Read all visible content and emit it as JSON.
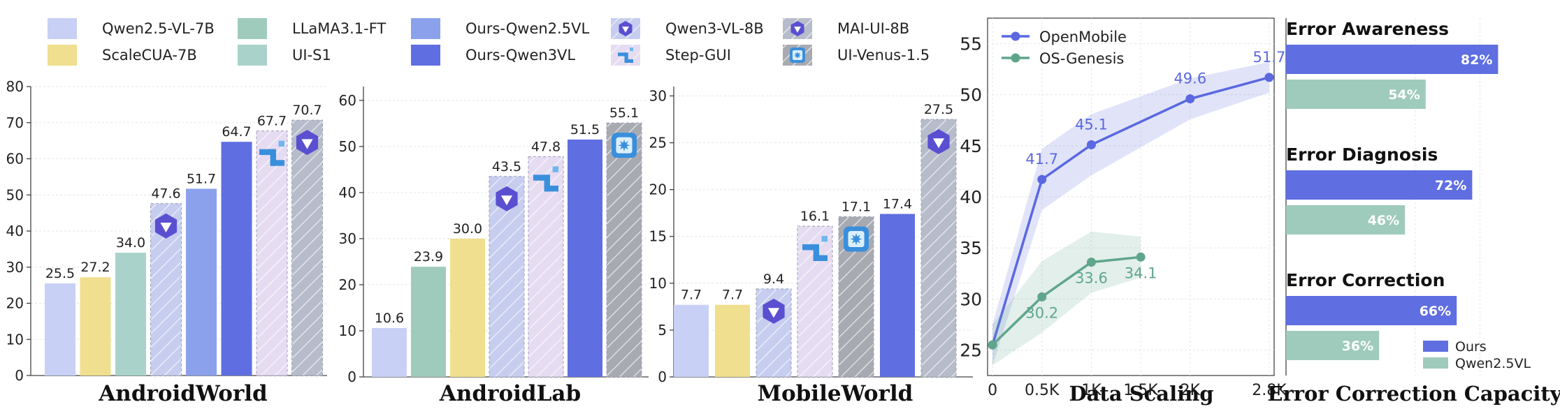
{
  "colors": {
    "qwen25": "#c8d0f5",
    "scalecua": "#efdf8e",
    "llama": "#9fcbbc",
    "uis1": "#a9d3ca",
    "ours25": "#8ba1ec",
    "ours3": "#5f6ee1",
    "qwen3": "#c6cdef",
    "stepgui": "#e6dcf2",
    "maiui": "#b7bccb",
    "venus": "#a8aab2",
    "openmobile": "#5b68e0",
    "osgenesis": "#5fa58c",
    "ours_bar": "#5f6ee1",
    "qwen_bar": "#9fcbbc",
    "icon_purple": "#5a4fd0",
    "icon_blue": "#3a8fdc"
  },
  "legend": [
    {
      "key": "qwen25",
      "label": "Qwen2.5-VL-7B",
      "hatch": false,
      "icon": ""
    },
    {
      "key": "scalecua",
      "label": "ScaleCUA-7B",
      "hatch": false,
      "icon": ""
    },
    {
      "key": "llama",
      "label": "LLaMA3.1-FT",
      "hatch": false,
      "icon": ""
    },
    {
      "key": "uis1",
      "label": "UI-S1",
      "hatch": false,
      "icon": ""
    },
    {
      "key": "ours25",
      "label": "Ours-Qwen2.5VL",
      "hatch": false,
      "icon": ""
    },
    {
      "key": "ours3",
      "label": "Ours-Qwen3VL",
      "hatch": false,
      "icon": ""
    },
    {
      "key": "qwen3",
      "label": "Qwen3-VL-8B",
      "hatch": true,
      "icon": "qwen-logo-icon"
    },
    {
      "key": "stepgui",
      "label": "Step-GUI",
      "hatch": true,
      "icon": "step-logo-icon"
    },
    {
      "key": "maiui",
      "label": "MAI-UI-8B",
      "hatch": true,
      "icon": "qwen-logo-icon"
    },
    {
      "key": "venus",
      "label": "UI-Venus-1.5",
      "hatch": true,
      "icon": "venus-logo-icon"
    }
  ],
  "chart_data": [
    {
      "type": "bar",
      "title": "AndroidWorld",
      "ylim": [
        0,
        80
      ],
      "yticks": [
        0,
        10,
        20,
        30,
        40,
        50,
        60,
        70,
        80
      ],
      "bars": [
        {
          "series": "Qwen2.5-VL-7B",
          "key": "qwen25",
          "value": 25.5,
          "label": "25.5"
        },
        {
          "series": "ScaleCUA-7B",
          "key": "scalecua",
          "value": 27.2,
          "label": "27.2"
        },
        {
          "series": "UI-S1",
          "key": "uis1",
          "value": 34.0,
          "label": "34.0"
        },
        {
          "series": "Qwen3-VL-8B",
          "key": "qwen3",
          "value": 47.6,
          "label": "47.6",
          "hatch": true,
          "icon": "qwen-logo-icon"
        },
        {
          "series": "Ours-Qwen2.5VL",
          "key": "ours25",
          "value": 51.7,
          "label": "51.7"
        },
        {
          "series": "Ours-Qwen3VL",
          "key": "ours3",
          "value": 64.7,
          "label": "64.7"
        },
        {
          "series": "Step-GUI",
          "key": "stepgui",
          "value": 67.7,
          "label": "67.7",
          "hatch": true,
          "icon": "step-logo-icon"
        },
        {
          "series": "MAI-UI-8B",
          "key": "maiui",
          "value": 70.7,
          "label": "70.7",
          "hatch": true,
          "icon": "qwen-logo-icon"
        }
      ]
    },
    {
      "type": "bar",
      "title": "AndroidLab",
      "ylim": [
        0,
        63
      ],
      "yticks": [
        0,
        10,
        20,
        30,
        40,
        50,
        60
      ],
      "bars": [
        {
          "series": "Qwen2.5-VL-7B",
          "key": "qwen25",
          "value": 10.6,
          "label": "10.6"
        },
        {
          "series": "LLaMA3.1-FT",
          "key": "llama",
          "value": 23.9,
          "label": "23.9"
        },
        {
          "series": "ScaleCUA-7B",
          "key": "scalecua",
          "value": 30.0,
          "label": "30.0"
        },
        {
          "series": "Qwen3-VL-8B",
          "key": "qwen3",
          "value": 43.5,
          "label": "43.5",
          "hatch": true,
          "icon": "qwen-logo-icon"
        },
        {
          "series": "Step-GUI",
          "key": "stepgui",
          "value": 47.8,
          "label": "47.8",
          "hatch": true,
          "icon": "step-logo-icon"
        },
        {
          "series": "Ours-Qwen3VL",
          "key": "ours3",
          "value": 51.5,
          "label": "51.5"
        },
        {
          "series": "UI-Venus-1.5",
          "key": "venus",
          "value": 55.1,
          "label": "55.1",
          "hatch": true,
          "icon": "venus-logo-icon"
        }
      ]
    },
    {
      "type": "bar",
      "title": "MobileWorld",
      "ylim": [
        0,
        31
      ],
      "yticks": [
        0,
        5,
        10,
        15,
        20,
        25,
        30
      ],
      "bars": [
        {
          "series": "Qwen2.5-VL-7B",
          "key": "qwen25",
          "value": 7.7,
          "label": "7.7"
        },
        {
          "series": "ScaleCUA-7B",
          "key": "scalecua",
          "value": 7.7,
          "label": "7.7"
        },
        {
          "series": "Qwen3-VL-8B",
          "key": "qwen3",
          "value": 9.4,
          "label": "9.4",
          "hatch": true,
          "icon": "qwen-logo-icon"
        },
        {
          "series": "Step-GUI",
          "key": "stepgui",
          "value": 16.1,
          "label": "16.1",
          "hatch": true,
          "icon": "step-logo-icon"
        },
        {
          "series": "UI-Venus-1.5",
          "key": "venus",
          "value": 17.1,
          "label": "17.1",
          "hatch": true,
          "icon": "venus-logo-icon"
        },
        {
          "series": "Ours-Qwen3VL",
          "key": "ours3",
          "value": 17.4,
          "label": "17.4"
        },
        {
          "series": "MAI-UI-8B",
          "key": "maiui",
          "value": 27.5,
          "label": "27.5",
          "hatch": true,
          "icon": "qwen-logo-icon"
        }
      ]
    },
    {
      "type": "line",
      "title": "Data Scaling",
      "xlim": [
        -0.05,
        2.85
      ],
      "ylim": [
        22.5,
        57.5
      ],
      "xticks": [
        0,
        0.5,
        1,
        1.5,
        2,
        2.8
      ],
      "xticklabels": [
        "0",
        "0.5K",
        "1K",
        "1.5K",
        "2K",
        "2.8K"
      ],
      "yticks": [
        25,
        30,
        35,
        40,
        45,
        50,
        55
      ],
      "legend_position": "top-left",
      "series": [
        {
          "name": "OpenMobile",
          "key": "openmobile",
          "x": [
            0,
            0.5,
            1,
            2,
            2.8
          ],
          "y": [
            25.5,
            41.7,
            45.1,
            49.6,
            51.7
          ],
          "labels": [
            "",
            "41.7",
            "45.1",
            "49.6",
            "51.7"
          ],
          "band": [
            2.0,
            3.0,
            3.0,
            2.0,
            1.5
          ]
        },
        {
          "name": "OS-Genesis",
          "key": "osgenesis",
          "x": [
            0,
            0.5,
            1,
            1.5
          ],
          "y": [
            25.5,
            30.2,
            33.6,
            34.1
          ],
          "labels": [
            "",
            "30.2",
            "33.6",
            "34.1"
          ],
          "band": [
            2.0,
            3.5,
            3.0,
            2.0
          ]
        }
      ]
    },
    {
      "type": "bar",
      "orientation": "horizontal",
      "title": "Error Correction Capacity",
      "xlim": [
        0,
        100
      ],
      "legend_position": "bottom-right",
      "series_names": [
        "Ours",
        "Qwen2.5VL"
      ],
      "groups": [
        {
          "title": "Error Awareness",
          "ours": 82,
          "ours_label": "82%",
          "qwen": 54,
          "qwen_label": "54%"
        },
        {
          "title": "Error Diagnosis",
          "ours": 72,
          "ours_label": "72%",
          "qwen": 46,
          "qwen_label": "46%"
        },
        {
          "title": "Error Correction",
          "ours": 66,
          "ours_label": "66%",
          "qwen": 36,
          "qwen_label": "36%"
        }
      ]
    }
  ]
}
